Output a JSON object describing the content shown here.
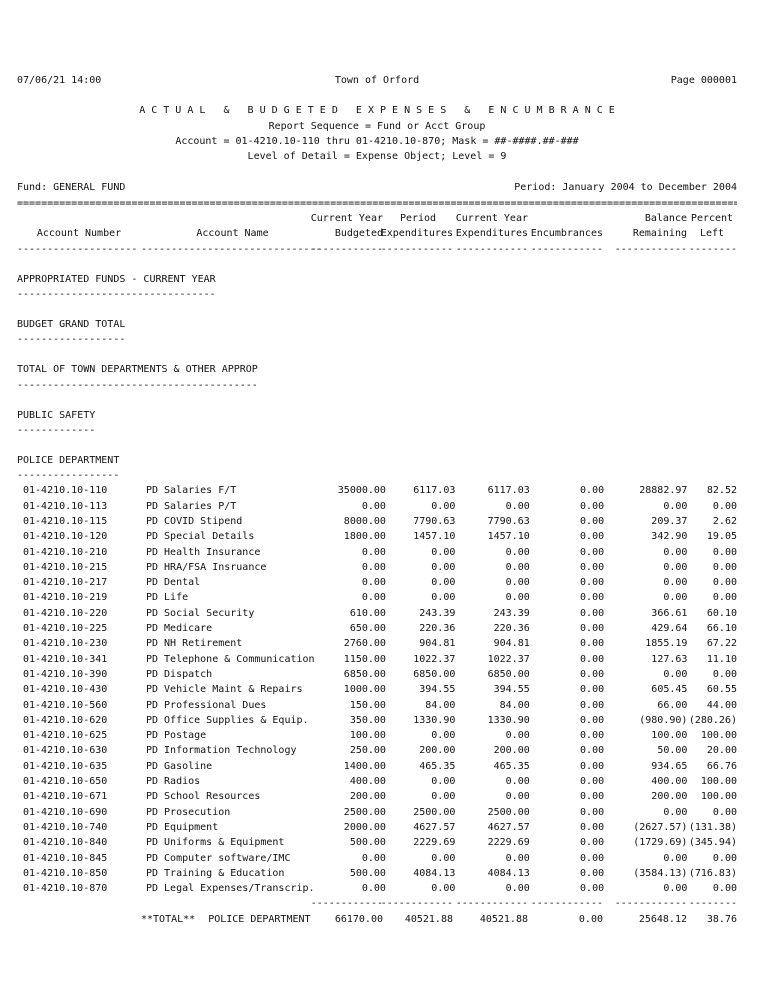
{
  "page_header": {
    "datetime": "07/06/21 14:00",
    "title": "Town of Orford",
    "page": "Page 000001"
  },
  "report_title": {
    "line1": "A C T U A L   &   B U D G E T E D   E X P E N S E S   &   E N C U M B R A N C E",
    "line2": "Report Sequence = Fund or Acct Group",
    "line3": "Account = 01-4210.10-110 thru 01-4210.10-870; Mask = ##-####.##-###",
    "line4": "Level of Detail = Expense Object; Level = 9"
  },
  "fund_line": {
    "fund": "Fund: GENERAL FUND",
    "period": "Period: January 2004 to December 2004"
  },
  "separator": "========================================================================================================================",
  "table": {
    "header_line1": [
      "",
      "",
      "Current Year",
      "Period",
      "Current Year",
      "",
      "Balance",
      "Percent"
    ],
    "header_line2": [
      "Account Number",
      "Account Name",
      "Budgeted",
      "Expenditures",
      "Expenditures",
      "Encumbrances",
      "Remaining",
      "Left"
    ],
    "underline": [
      "--------------------",
      "------------------------------",
      "------------",
      "------------",
      "------------",
      "------------",
      "------------",
      "--------"
    ],
    "subtotal_rule": [
      "",
      "",
      "------------",
      "------------",
      "------------",
      "------------",
      "------------",
      "--------"
    ],
    "rows": [
      {
        "account": "01-4210.10-110",
        "name": "PD Salaries F/T",
        "values": [
          "35000.00",
          "6117.03",
          "6117.03",
          "0.00",
          "28882.97",
          "82.52"
        ]
      },
      {
        "account": "01-4210.10-113",
        "name": "PD Salaries P/T",
        "values": [
          "0.00",
          "0.00",
          "0.00",
          "0.00",
          "0.00",
          "0.00"
        ]
      },
      {
        "account": "01-4210.10-115",
        "name": "PD COVID Stipend",
        "values": [
          "8000.00",
          "7790.63",
          "7790.63",
          "0.00",
          "209.37",
          "2.62"
        ]
      },
      {
        "account": "01-4210.10-120",
        "name": "PD Special Details",
        "values": [
          "1800.00",
          "1457.10",
          "1457.10",
          "0.00",
          "342.90",
          "19.05"
        ]
      },
      {
        "account": "01-4210.10-210",
        "name": "PD Health Insurance",
        "values": [
          "0.00",
          "0.00",
          "0.00",
          "0.00",
          "0.00",
          "0.00"
        ]
      },
      {
        "account": "01-4210.10-215",
        "name": "PD HRA/FSA Insruance",
        "values": [
          "0.00",
          "0.00",
          "0.00",
          "0.00",
          "0.00",
          "0.00"
        ]
      },
      {
        "account": "01-4210.10-217",
        "name": "PD Dental",
        "values": [
          "0.00",
          "0.00",
          "0.00",
          "0.00",
          "0.00",
          "0.00"
        ]
      },
      {
        "account": "01-4210.10-219",
        "name": "PD Life",
        "values": [
          "0.00",
          "0.00",
          "0.00",
          "0.00",
          "0.00",
          "0.00"
        ]
      },
      {
        "account": "01-4210.10-220",
        "name": "PD Social Security",
        "values": [
          "610.00",
          "243.39",
          "243.39",
          "0.00",
          "366.61",
          "60.10"
        ]
      },
      {
        "account": "01-4210.10-225",
        "name": "PD Medicare",
        "values": [
          "650.00",
          "220.36",
          "220.36",
          "0.00",
          "429.64",
          "66.10"
        ]
      },
      {
        "account": "01-4210.10-230",
        "name": "PD NH Retirement",
        "values": [
          "2760.00",
          "904.81",
          "904.81",
          "0.00",
          "1855.19",
          "67.22"
        ]
      },
      {
        "account": "01-4210.10-341",
        "name": "PD Telephone & Communication",
        "values": [
          "1150.00",
          "1022.37",
          "1022.37",
          "0.00",
          "127.63",
          "11.10"
        ]
      },
      {
        "account": "01-4210.10-390",
        "name": "PD Dispatch",
        "values": [
          "6850.00",
          "6850.00",
          "6850.00",
          "0.00",
          "0.00",
          "0.00"
        ]
      },
      {
        "account": "01-4210.10-430",
        "name": "PD Vehicle Maint & Repairs",
        "values": [
          "1000.00",
          "394.55",
          "394.55",
          "0.00",
          "605.45",
          "60.55"
        ]
      },
      {
        "account": "01-4210.10-560",
        "name": "PD Professional Dues",
        "values": [
          "150.00",
          "84.00",
          "84.00",
          "0.00",
          "66.00",
          "44.00"
        ]
      },
      {
        "account": "01-4210.10-620",
        "name": "PD Office Supplies & Equip.",
        "values": [
          "350.00",
          "1330.90",
          "1330.90",
          "0.00",
          "(980.90)",
          "(280.26)"
        ]
      },
      {
        "account": "01-4210.10-625",
        "name": "PD Postage",
        "values": [
          "100.00",
          "0.00",
          "0.00",
          "0.00",
          "100.00",
          "100.00"
        ]
      },
      {
        "account": "01-4210.10-630",
        "name": "PD Information Technology",
        "values": [
          "250.00",
          "200.00",
          "200.00",
          "0.00",
          "50.00",
          "20.00"
        ]
      },
      {
        "account": "01-4210.10-635",
        "name": "PD Gasoline",
        "values": [
          "1400.00",
          "465.35",
          "465.35",
          "0.00",
          "934.65",
          "66.76"
        ]
      },
      {
        "account": "01-4210.10-650",
        "name": "PD Radios",
        "values": [
          "400.00",
          "0.00",
          "0.00",
          "0.00",
          "400.00",
          "100.00"
        ]
      },
      {
        "account": "01-4210.10-671",
        "name": "PD School Resources",
        "values": [
          "200.00",
          "0.00",
          "0.00",
          "0.00",
          "200.00",
          "100.00"
        ]
      },
      {
        "account": "01-4210.10-690",
        "name": "PD Prosecution",
        "values": [
          "2500.00",
          "2500.00",
          "2500.00",
          "0.00",
          "0.00",
          "0.00"
        ]
      },
      {
        "account": "01-4210.10-740",
        "name": "PD Equipment",
        "values": [
          "2000.00",
          "4627.57",
          "4627.57",
          "0.00",
          "(2627.57)",
          "(131.38)"
        ]
      },
      {
        "account": "01-4210.10-840",
        "name": "PD Uniforms & Equipment",
        "values": [
          "500.00",
          "2229.69",
          "2229.69",
          "0.00",
          "(1729.69)",
          "(345.94)"
        ]
      },
      {
        "account": "01-4210.10-845",
        "name": "PD Computer software/IMC",
        "values": [
          "0.00",
          "0.00",
          "0.00",
          "0.00",
          "0.00",
          "0.00"
        ]
      },
      {
        "account": "01-4210.10-850",
        "name": "PD Training & Education",
        "values": [
          "500.00",
          "4084.13",
          "4084.13",
          "0.00",
          "(3584.13)",
          "(716.83)"
        ]
      },
      {
        "account": "01-4210.10-870",
        "name": "PD Legal Expenses/Transcrip.",
        "values": [
          "0.00",
          "0.00",
          "0.00",
          "0.00",
          "0.00",
          "0.00"
        ]
      }
    ],
    "total": {
      "label": "**TOTAL**",
      "department": "POLICE DEPARTMENT",
      "values": [
        "66170.00",
        "40521.88",
        "40521.88",
        "0.00",
        "25648.12",
        "38.76"
      ]
    }
  },
  "sections": [
    {
      "label": "APPROPRIATED FUNDS - CURRENT YEAR"
    },
    {
      "label": "BUDGET GRAND TOTAL"
    },
    {
      "label": "TOTAL OF TOWN DEPARTMENTS & OTHER APPROP"
    },
    {
      "label": "PUBLIC SAFETY"
    },
    {
      "label": "POLICE DEPARTMENT"
    }
  ]
}
